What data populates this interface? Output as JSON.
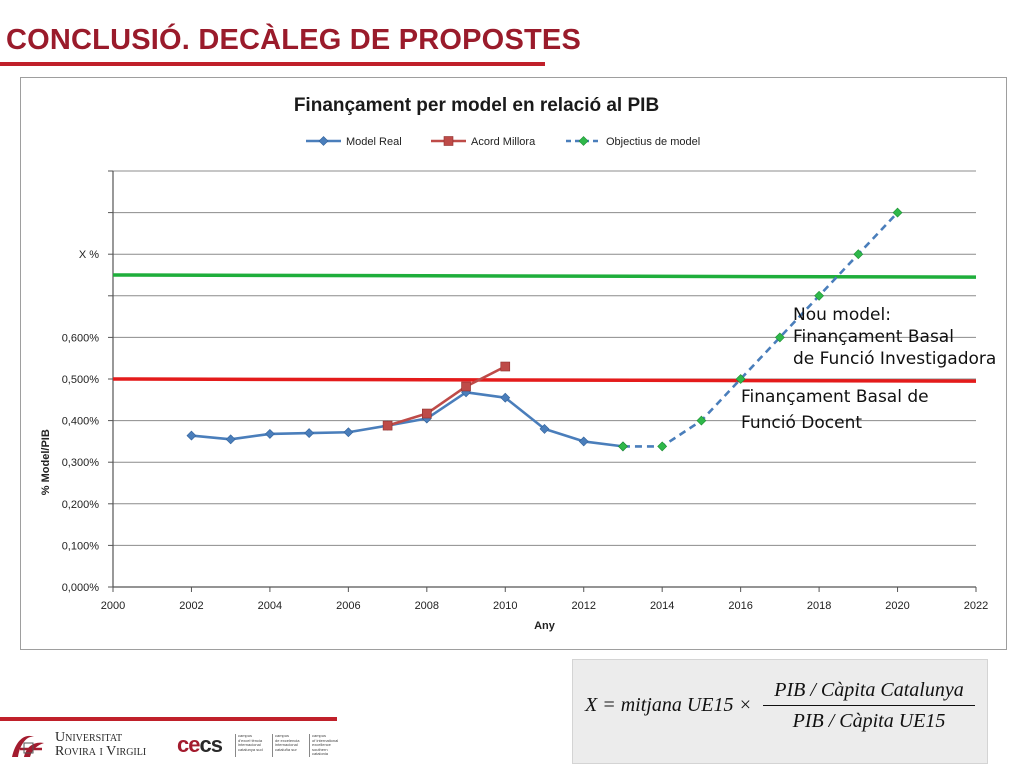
{
  "page": {
    "title": "CONCLUSIÓ. DECÀLEG DE PROPOSTES"
  },
  "colors": {
    "accent": "#c0202a",
    "title": "#9a1b2b",
    "model_real": "#4a7ebb",
    "acord_millora": "#be4b48",
    "objectius": "#2fb84a",
    "green_line": "#1fae3b",
    "red_line": "#e41b1b"
  },
  "chart_data": {
    "type": "line",
    "title": "Finançament per model en relació al PIB",
    "xlabel": "Any",
    "ylabel": "% Model/PIB",
    "xlim": [
      2000,
      2022
    ],
    "ylim": [
      0,
      1
    ],
    "x_ticks": [
      "2000",
      "2002",
      "2004",
      "2006",
      "2008",
      "2010",
      "2012",
      "2014",
      "2016",
      "2018",
      "2020",
      "2022"
    ],
    "y_ticks": [
      "0,000%",
      "0,100%",
      "0,200%",
      "0,300%",
      "0,400%",
      "0,500%",
      "0,600%",
      "",
      "X %",
      "",
      ""
    ],
    "legend_position": "top",
    "series": [
      {
        "name": "Model Real",
        "x": [
          2002,
          2003,
          2004,
          2005,
          2006,
          2007,
          2008,
          2009,
          2010,
          2011,
          2012,
          2013
        ],
        "y": [
          0.364,
          0.355,
          0.368,
          0.37,
          0.372,
          0.388,
          0.405,
          0.468,
          0.455,
          0.38,
          0.35,
          0.338
        ]
      },
      {
        "name": "Acord Millora",
        "x": [
          2007,
          2008,
          2009,
          2010
        ],
        "y": [
          0.388,
          0.417,
          0.482,
          0.53
        ]
      },
      {
        "name": "Objectius de model",
        "x": [
          2013,
          2014,
          2015,
          2016,
          2017,
          2018,
          2019,
          2020
        ],
        "y": [
          0.338,
          0.338,
          0.4,
          0.5,
          0.6,
          0.7,
          0.8,
          0.9
        ]
      }
    ],
    "reference_lines": [
      {
        "y_start": 0.5,
        "y_end": 0.495
      },
      {
        "y_start": 0.75,
        "y_end": 0.745
      }
    ],
    "annotations": {
      "nou_model": [
        "Nou model:",
        "Finançament Basal",
        "de Funció Investigadora"
      ],
      "basal_docent": [
        "Finançament Basal de",
        " Funció Docent"
      ]
    }
  },
  "formula": {
    "lhs": "X = mitjana UE15 ×",
    "numerator": "PIB / Càpita  Catalunya",
    "denominator": "PIB / Càpita  UE15"
  },
  "footer": {
    "urv_line1": "Universitat",
    "urv_line2": "Rovira i Virgili",
    "cei_mark_left": "ce",
    "cei_mark_right": "cs",
    "cei_columns": [
      [
        "campus",
        "d'excel·lència",
        "internacional",
        "catalunya sud"
      ],
      [
        "campus",
        "de excelencia",
        "internacional",
        "cataluña sur"
      ],
      [
        "campus",
        "of international",
        "excellence",
        "southern catalonia"
      ]
    ]
  }
}
